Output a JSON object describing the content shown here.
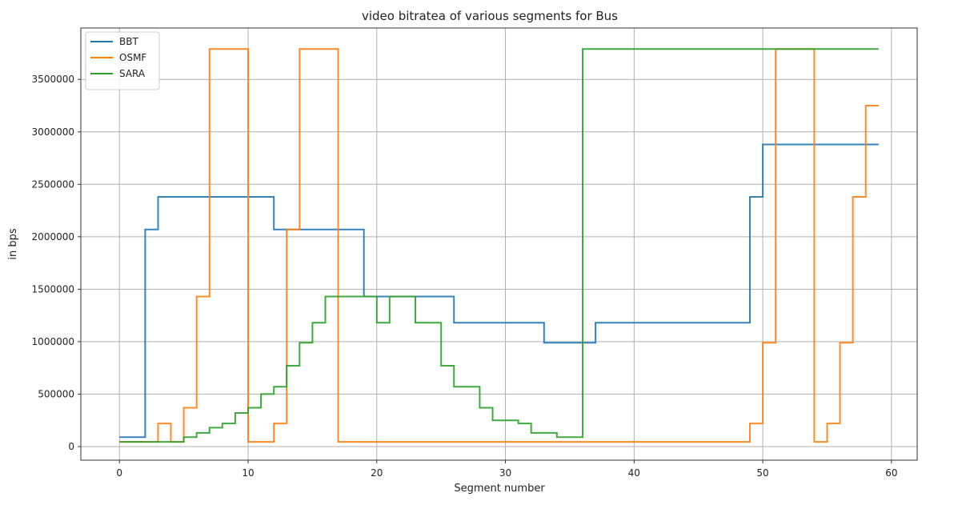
{
  "chart_data": {
    "type": "line",
    "step": "post",
    "title": "video bitratea of various segments for Bus",
    "xlabel": "Segment number",
    "ylabel": "in bps",
    "xlim": [
      -3,
      62
    ],
    "ylim": [
      -130000,
      3990000
    ],
    "xticks": [
      0,
      10,
      20,
      30,
      40,
      50,
      60
    ],
    "xtick_labels": [
      "0",
      "10",
      "20",
      "30",
      "40",
      "50",
      "60"
    ],
    "yticks": [
      0,
      500000,
      1000000,
      1500000,
      2000000,
      2500000,
      3000000,
      3500000
    ],
    "ytick_labels": [
      "0",
      "500000",
      "1000000",
      "1500000",
      "2000000",
      "2500000",
      "3000000",
      "3500000"
    ],
    "grid": true,
    "legend_position": "top-left",
    "x": [
      0,
      1,
      2,
      3,
      4,
      5,
      6,
      7,
      8,
      9,
      10,
      11,
      12,
      13,
      14,
      15,
      16,
      17,
      18,
      19,
      20,
      21,
      22,
      23,
      24,
      25,
      26,
      27,
      28,
      29,
      30,
      31,
      32,
      33,
      34,
      35,
      36,
      37,
      38,
      39,
      40,
      41,
      42,
      43,
      44,
      45,
      46,
      47,
      48,
      49,
      50,
      51,
      52,
      53,
      54,
      55,
      56,
      57,
      58,
      59
    ],
    "series": [
      {
        "name": "BBT",
        "color": "#1f77b4",
        "values": [
          90000,
          90000,
          2070000,
          2380000,
          2380000,
          2380000,
          2380000,
          2380000,
          2380000,
          2380000,
          2380000,
          2380000,
          2070000,
          2070000,
          2070000,
          2070000,
          2070000,
          2070000,
          2070000,
          1430000,
          1430000,
          1430000,
          1430000,
          1430000,
          1430000,
          1430000,
          1180000,
          1180000,
          1180000,
          1180000,
          1180000,
          1180000,
          1180000,
          990000,
          990000,
          990000,
          990000,
          1180000,
          1180000,
          1180000,
          1180000,
          1180000,
          1180000,
          1180000,
          1180000,
          1180000,
          1180000,
          1180000,
          1180000,
          2380000,
          2880000,
          2880000,
          2880000,
          2880000,
          2880000,
          2880000,
          2880000,
          2880000,
          2880000,
          2880000
        ]
      },
      {
        "name": "OSMF",
        "color": "#ff7f0e",
        "values": [
          45000,
          45000,
          45000,
          220000,
          45000,
          370000,
          1430000,
          3790000,
          3790000,
          3790000,
          45000,
          45000,
          220000,
          2070000,
          3790000,
          3790000,
          3790000,
          45000,
          45000,
          45000,
          45000,
          45000,
          45000,
          45000,
          45000,
          45000,
          45000,
          45000,
          45000,
          45000,
          45000,
          45000,
          45000,
          45000,
          45000,
          45000,
          45000,
          45000,
          45000,
          45000,
          45000,
          45000,
          45000,
          45000,
          45000,
          45000,
          45000,
          45000,
          45000,
          220000,
          990000,
          3790000,
          3790000,
          3790000,
          45000,
          220000,
          990000,
          2380000,
          3250000,
          3250000
        ]
      },
      {
        "name": "SARA",
        "color": "#2ca02c",
        "values": [
          45000,
          45000,
          45000,
          45000,
          45000,
          90000,
          130000,
          180000,
          220000,
          320000,
          370000,
          500000,
          570000,
          770000,
          990000,
          1180000,
          1430000,
          1430000,
          1430000,
          1430000,
          1180000,
          1430000,
          1430000,
          1180000,
          1180000,
          770000,
          570000,
          570000,
          370000,
          250000,
          250000,
          220000,
          130000,
          130000,
          90000,
          90000,
          3790000,
          3790000,
          3790000,
          3790000,
          3790000,
          3790000,
          3790000,
          3790000,
          3790000,
          3790000,
          3790000,
          3790000,
          3790000,
          3790000,
          3790000,
          3790000,
          3790000,
          3790000,
          3790000,
          3790000,
          3790000,
          3790000,
          3790000,
          3790000
        ]
      }
    ]
  }
}
